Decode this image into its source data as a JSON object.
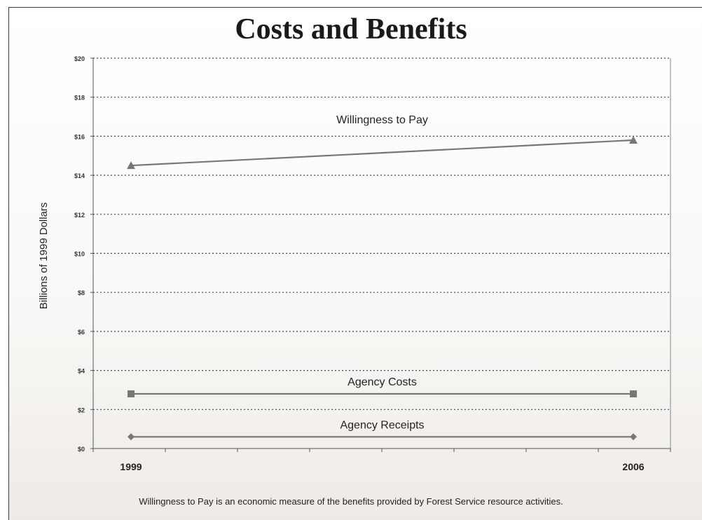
{
  "chart_data": {
    "type": "line",
    "title": "Costs and Benefits",
    "ylabel": "Billions of 1999 Dollars",
    "xlabel": "",
    "x": [
      1999,
      2006
    ],
    "x_tick_labels": [
      "1999",
      "2006"
    ],
    "ylim": [
      0,
      20
    ],
    "y_ticks": [
      0,
      2,
      4,
      6,
      8,
      10,
      12,
      14,
      16,
      18,
      20
    ],
    "y_tick_labels": [
      "$0",
      "$2",
      "$4",
      "$6",
      "$8",
      "$10",
      "$12",
      "$14",
      "$16",
      "$18",
      "$20"
    ],
    "grid": true,
    "series": [
      {
        "name": "Willingness to Pay",
        "values": [
          14.5,
          15.8
        ],
        "marker": "triangle",
        "color": "#777777"
      },
      {
        "name": "Agency Costs",
        "values": [
          2.8,
          2.8
        ],
        "marker": "square",
        "color": "#777777"
      },
      {
        "name": "Agency Receipts",
        "values": [
          0.6,
          0.6
        ],
        "marker": "diamond",
        "color": "#777777"
      }
    ],
    "caption": "Willingness to Pay is an economic measure of the benefits provided by Forest Service resource activities."
  }
}
